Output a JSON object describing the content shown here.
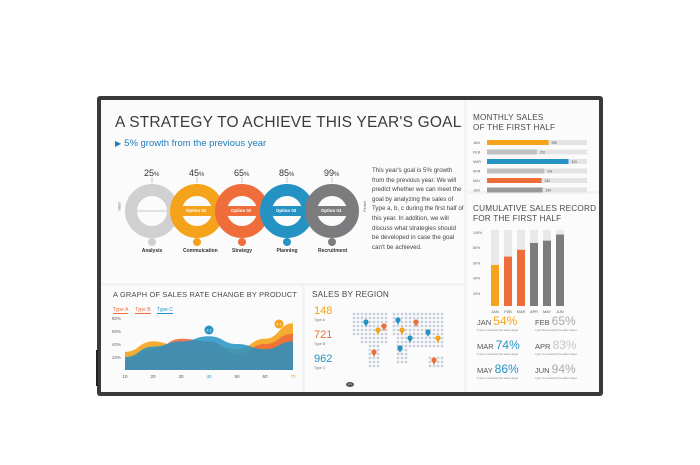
{
  "strategy": {
    "title": "A STRATEGY TO ACHIEVE THIS YEAR'S GOAL",
    "growth": "5% growth from the previous year",
    "start_label": "Start",
    "finish_label": "Finish",
    "steps": [
      {
        "pct": "25",
        "option": "",
        "label": "Analysis",
        "color": "#d0d0d2",
        "icon": "bulb-icon"
      },
      {
        "pct": "45",
        "option": "Option 01",
        "label": "Commuication",
        "color": "#f5a31a",
        "icon": "people-icon"
      },
      {
        "pct": "65",
        "option": "Option 02",
        "label": "Strategy",
        "color": "#ee6d3a",
        "icon": "chart-icon"
      },
      {
        "pct": "85",
        "option": "Option 03",
        "label": "Planning",
        "color": "#2592c4",
        "icon": "calendar-icon"
      },
      {
        "pct": "99",
        "option": "Option 04",
        "label": "Recruitment",
        "color": "#7c7c7e",
        "icon": "person-icon"
      }
    ],
    "paragraph": "This year's goal is 5% growth from the previous year. We will predict whether we can meet the goal by analyzing the sales of Type a, b, c during the first half of this year. In addition, we will discuss what strategies should be developed in case the goal can't be achieved."
  },
  "monthly": {
    "title_line1": "MONTHLY SALES",
    "title_line2": "OF THE FIRST HALF"
  },
  "cumulative": {
    "title_line1": "CUMULATIVE SALES RECORD",
    "title_line2": "FOR THE FIRST HALF",
    "stats": [
      {
        "month": "JAN",
        "value": "54%",
        "color": "#f5a31a",
        "sub": "Type A exceeded the sales target"
      },
      {
        "month": "FEB",
        "value": "65%",
        "color": "#a9a9ab",
        "sub": "Type B exceeded the sales target"
      },
      {
        "month": "MAR",
        "value": "74%",
        "color": "#2592c4",
        "sub": "Type A exceeded the sales target"
      },
      {
        "month": "APR",
        "value": "83%",
        "color": "#c6c6c8",
        "sub": "Type C exceeded the sales target"
      },
      {
        "month": "MAY",
        "value": "86%",
        "color": "#2592c4",
        "sub": "Type A exceeded the sales target"
      },
      {
        "month": "JUN",
        "value": "94%",
        "color": "#a9a9ab",
        "sub": "Type C exceeded the sales target"
      }
    ]
  },
  "product": {
    "title": "A GRAPH OF SALES RATE CHANGE BY PRODUCT",
    "legend": [
      {
        "name": "Type A",
        "color": "#ee6d3a"
      },
      {
        "name": "Type B",
        "color": "#ee6d3a"
      },
      {
        "name": "Type C",
        "color": "#2592c4"
      }
    ],
    "callouts": [
      "3.2",
      "4.1"
    ]
  },
  "region": {
    "title": "SALES BY REGION",
    "items": [
      {
        "value": "148",
        "color": "#f5a31a",
        "sub": "Type A"
      },
      {
        "value": "721",
        "color": "#ee6d3a",
        "sub": "Type B"
      },
      {
        "value": "962",
        "color": "#2592c4",
        "sub": "Type C"
      }
    ]
  },
  "brand": {
    "logo": "LG"
  },
  "chart_data": [
    {
      "type": "bar",
      "title": "MONTHLY SALES OF THE FIRST HALF",
      "orientation": "horizontal",
      "categories": [
        "JAN",
        "FEB",
        "MAR",
        "APR",
        "MAY",
        "JUN"
      ],
      "values": [
        259,
        210,
        343,
        241,
        230,
        234
      ],
      "colors": [
        "#f5a31a",
        "#bfbfc1",
        "#2592c4",
        "#bfbfc1",
        "#ee6d3a",
        "#9a9a9c"
      ],
      "xlim": [
        0,
        400
      ]
    },
    {
      "type": "bar",
      "title": "CUMULATIVE SALES RECORD FOR THE FIRST HALF",
      "categories": [
        "JAN",
        "FEB",
        "MAR",
        "APR",
        "MAY",
        "JUN"
      ],
      "values": [
        54,
        65,
        74,
        83,
        86,
        94
      ],
      "colors": [
        "#f5a31a",
        "#ee6d3a",
        "#ee6d3a",
        "#7c7c7e",
        "#7c7c7e",
        "#7c7c7e"
      ],
      "ylim": [
        0,
        100
      ],
      "yticks": [
        "100%",
        "80%",
        "60%",
        "40%",
        "20%"
      ]
    },
    {
      "type": "area",
      "title": "A GRAPH OF SALES RATE CHANGE BY PRODUCT",
      "x": [
        10,
        20,
        30,
        40,
        50,
        60,
        70
      ],
      "xticks": [
        "10",
        "20",
        "30",
        "40",
        "50",
        "60",
        "70"
      ],
      "yticks": [
        "80%",
        "60%",
        "40%",
        "20%"
      ],
      "ylim": [
        0,
        100
      ],
      "series": [
        {
          "name": "Type A",
          "color": "#f5a31a",
          "values": [
            35,
            55,
            45,
            50,
            40,
            60,
            90
          ]
        },
        {
          "name": "Type B",
          "color": "#ee6d3a",
          "values": [
            20,
            40,
            60,
            55,
            30,
            50,
            70
          ]
        },
        {
          "name": "Type C",
          "color": "#2592c4",
          "values": [
            25,
            45,
            55,
            65,
            50,
            40,
            55
          ]
        }
      ]
    }
  ]
}
